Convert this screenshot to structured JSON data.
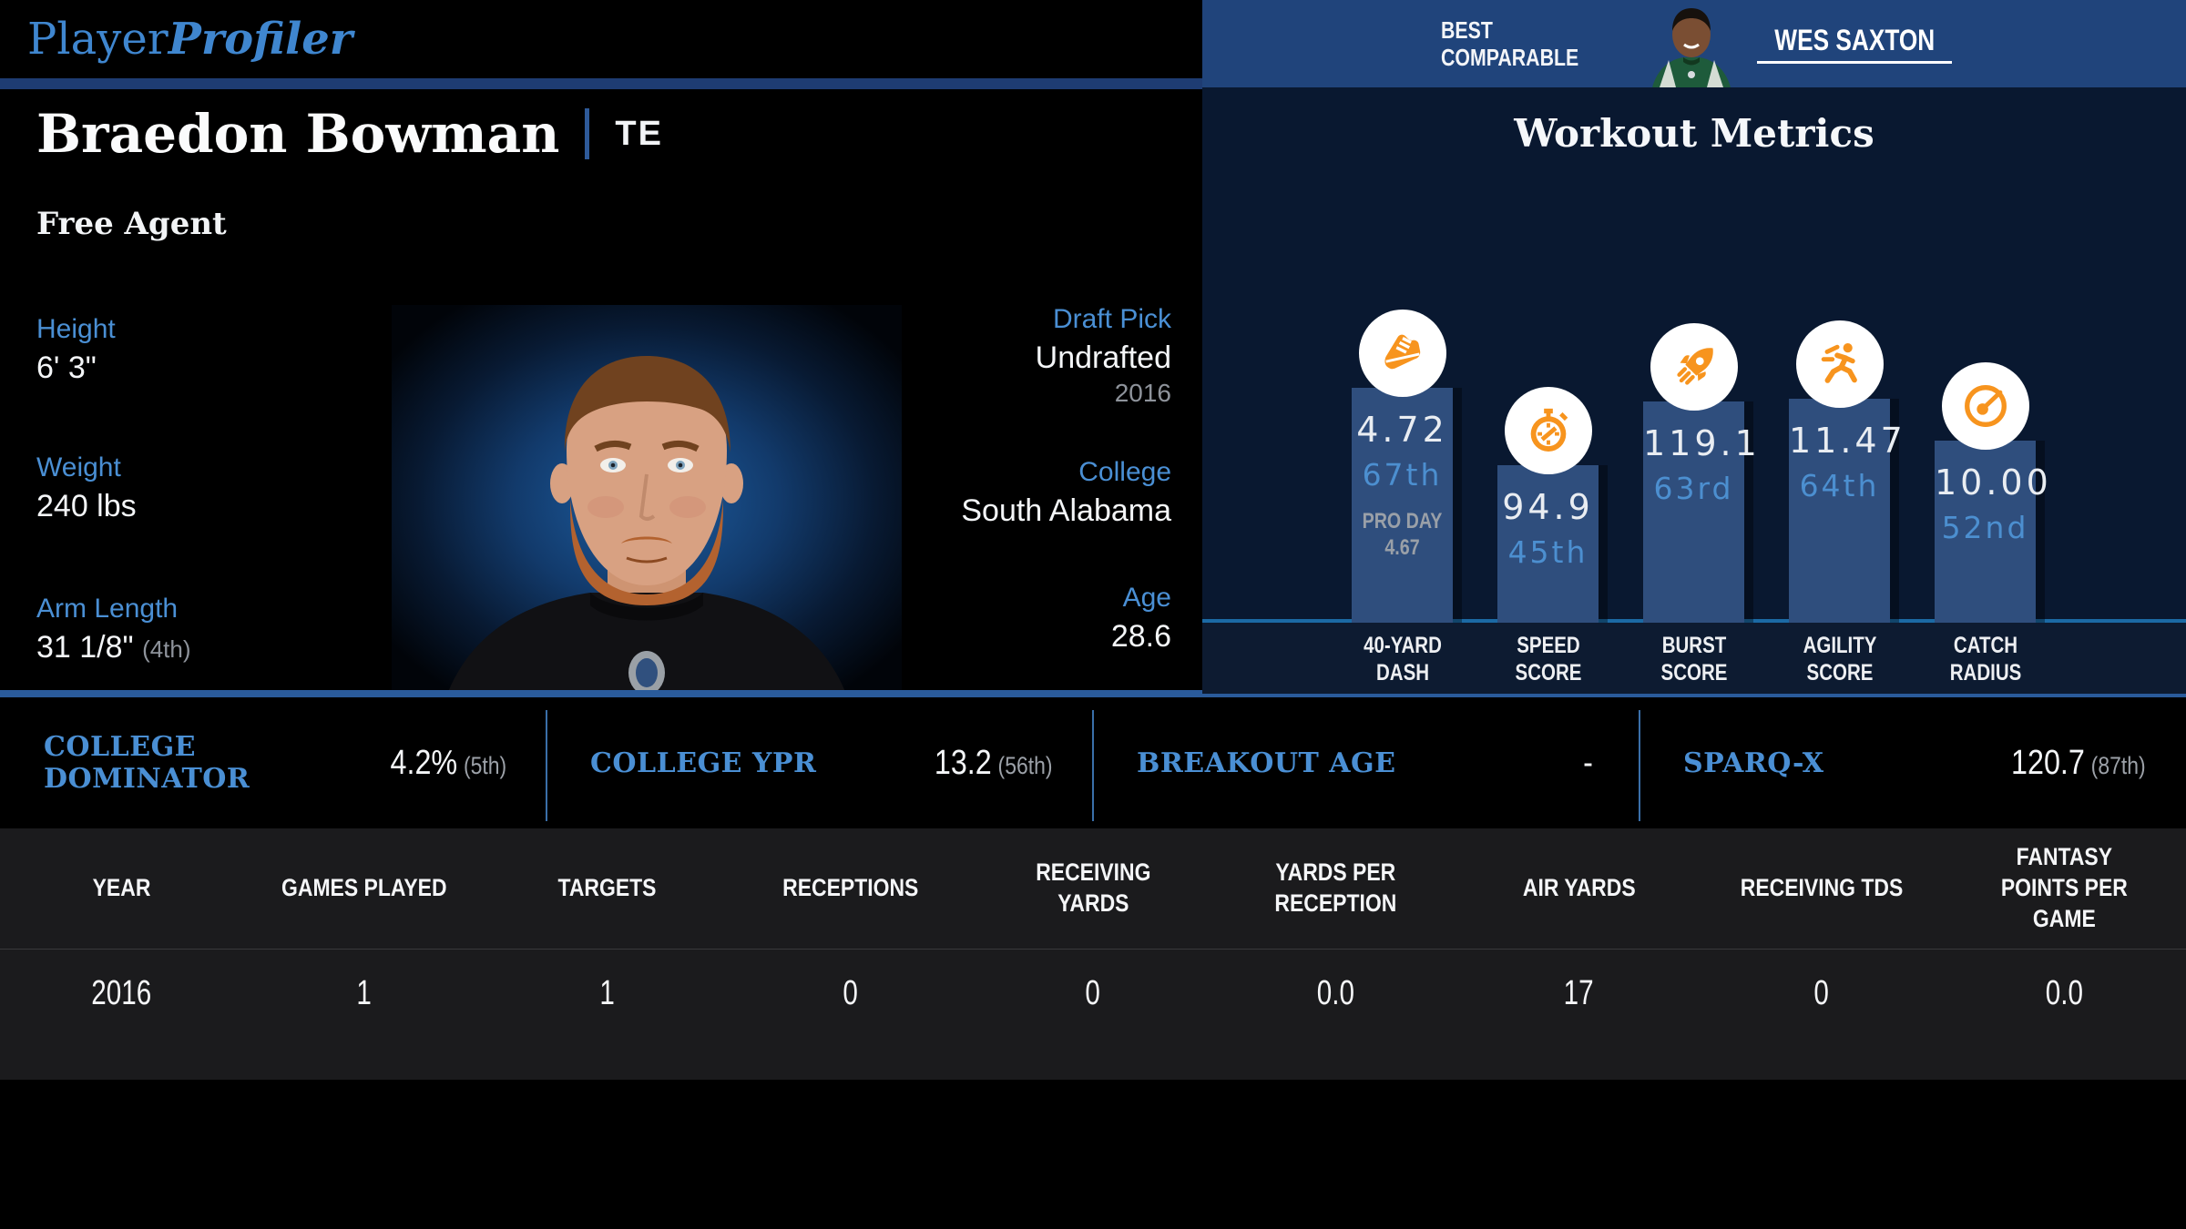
{
  "logo": {
    "part1": "Player",
    "part2": "Profiler"
  },
  "best_comparable": {
    "label_line1": "BEST",
    "label_line2": "COMPARABLE",
    "name": "WES SAXTON"
  },
  "player": {
    "name": "Braedon Bowman",
    "position": "TE",
    "status": "Free Agent"
  },
  "attributes": {
    "left": [
      {
        "label": "Height",
        "value": "6' 3\"",
        "rank": ""
      },
      {
        "label": "Weight",
        "value": "240 lbs",
        "rank": ""
      },
      {
        "label": "Arm Length",
        "value": "31 1/8\"",
        "rank": "(4th)"
      }
    ],
    "right": [
      {
        "label": "Draft Pick",
        "value": "Undrafted",
        "sub": "2016"
      },
      {
        "label": "College",
        "value": "South Alabama",
        "sub": ""
      },
      {
        "label": "Age",
        "value": "28.6",
        "sub": ""
      }
    ]
  },
  "workout": {
    "title": "Workout Metrics",
    "bars": [
      {
        "label_line1": "40-YARD",
        "label_line2": "DASH",
        "value": "4.72",
        "percentile": "67th",
        "percentile_num": 67,
        "note_line1": "PRO DAY",
        "note_line2": "4.67",
        "icon": "shoe-icon"
      },
      {
        "label_line1": "SPEED",
        "label_line2": "SCORE",
        "value": "94.9",
        "percentile": "45th",
        "percentile_num": 45,
        "icon": "stopwatch-icon"
      },
      {
        "label_line1": "BURST",
        "label_line2": "SCORE",
        "value": "119.1",
        "percentile": "63rd",
        "percentile_num": 63,
        "icon": "rocket-icon"
      },
      {
        "label_line1": "AGILITY",
        "label_line2": "SCORE",
        "value": "11.47",
        "percentile": "64th",
        "percentile_num": 64,
        "icon": "runner-icon"
      },
      {
        "label_line1": "CATCH",
        "label_line2": "RADIUS",
        "value": "10.00",
        "percentile": "52nd",
        "percentile_num": 52,
        "icon": "gauge-icon"
      }
    ]
  },
  "stats_row": [
    {
      "label": "COLLEGE DOMINATOR",
      "value": "4.2%",
      "rank": "(5th)"
    },
    {
      "label": "COLLEGE YPR",
      "value": "13.2",
      "rank": "(56th)"
    },
    {
      "label": "BREAKOUT AGE",
      "value": "-",
      "rank": ""
    },
    {
      "label": "SPARQ-X",
      "value": "120.7",
      "rank": "(87th)"
    }
  ],
  "table": {
    "columns": [
      "YEAR",
      "GAMES PLAYED",
      "TARGETS",
      "RECEPTIONS",
      "RECEIVING YARDS",
      "YARDS PER RECEPTION",
      "AIR YARDS",
      "RECEIVING TDS",
      "FANTASY POINTS PER GAME"
    ],
    "rows": [
      [
        "2016",
        "1",
        "1",
        "0",
        "0",
        "0.0",
        "17",
        "0",
        "0.0"
      ]
    ]
  },
  "colors": {
    "accent_blue": "#4A8FD4",
    "orange": "#F7941E",
    "bar_blue": "#2F4E7D",
    "header_blue": "#20447B",
    "panel_navy": "#091830",
    "table_bg": "#1B1B1D"
  },
  "chart_data": {
    "type": "bar",
    "title": "Workout Metrics",
    "categories": [
      "40-Yard Dash",
      "Speed Score",
      "Burst Score",
      "Agility Score",
      "Catch Radius"
    ],
    "values": [
      4.72,
      94.9,
      119.1,
      11.47,
      10.0
    ],
    "percentiles": [
      67,
      45,
      63,
      64,
      52
    ],
    "annotations": [
      "Pro Day 4.67",
      "",
      "",
      "",
      ""
    ],
    "bar_height_encodes": "percentile",
    "ylim": [
      0,
      100
    ],
    "grid": false,
    "legend": false
  }
}
